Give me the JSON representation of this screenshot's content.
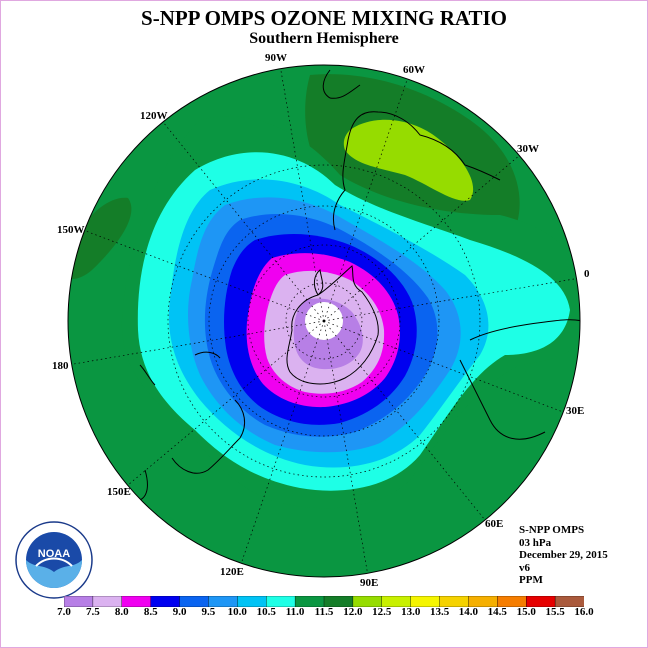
{
  "title": "S-NPP OMPS OZONE MIXING RATIO",
  "subtitle": "Southern Hemisphere",
  "longitude_labels": [
    "90W",
    "60W",
    "120W",
    "30W",
    "150W",
    "0",
    "180",
    "30E",
    "150E",
    "60E",
    "120E",
    "90E"
  ],
  "info": {
    "instrument": "S-NPP OMPS",
    "level": "03 hPa",
    "date": "December 29, 2015",
    "version": "v6",
    "units": "PPM"
  },
  "logo": {
    "text": "NOAA",
    "ring_text": "NATIONAL OCEANIC AND ATMOSPHERIC ADMINISTRATION · U.S. DEPARTMENT OF COMMERCE"
  },
  "colorbar": {
    "ticks": [
      "7.0",
      "7.5",
      "8.0",
      "8.5",
      "9.0",
      "9.5",
      "10.0",
      "10.5",
      "11.0",
      "11.5",
      "12.0",
      "12.5",
      "13.0",
      "13.5",
      "14.0",
      "14.5",
      "15.0",
      "15.5",
      "16.0"
    ],
    "colors": [
      "#b77fe6",
      "#dbb2f0",
      "#f000f0",
      "#0000f0",
      "#0a64f0",
      "#1e96f5",
      "#00c3f5",
      "#1effe6",
      "#0a9641",
      "#147d28",
      "#96dc00",
      "#c8f000",
      "#f5f500",
      "#f5d200",
      "#f5af00",
      "#f57d00",
      "#e60000",
      "#aa5a3c"
    ]
  }
}
